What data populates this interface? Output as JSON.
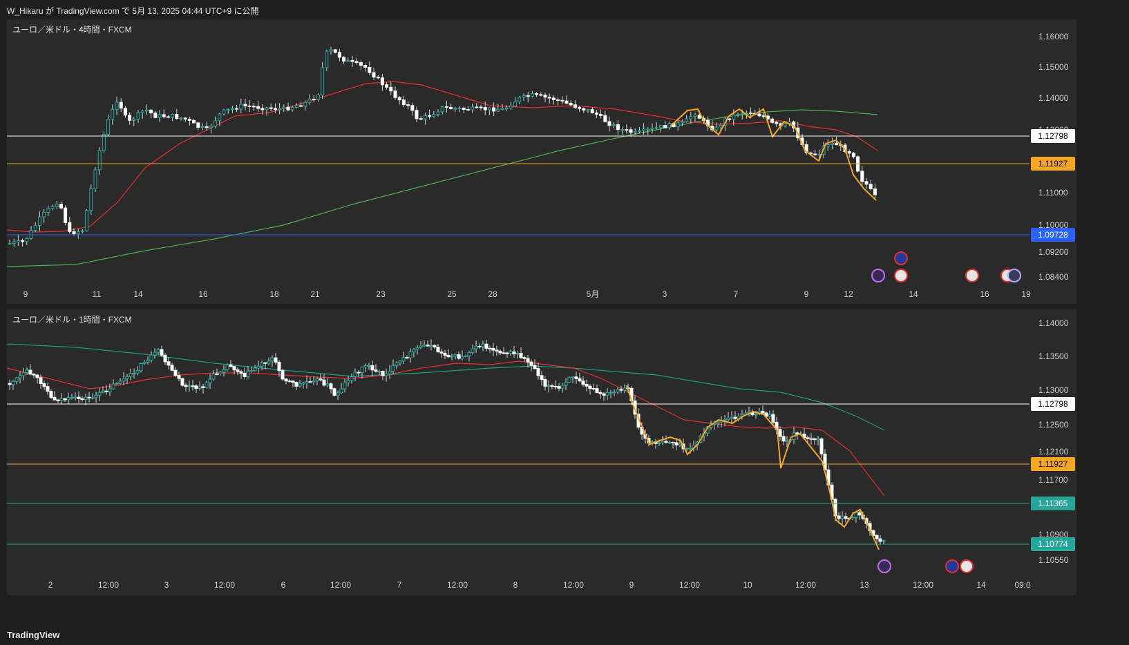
{
  "header": {
    "publish_text": "W_Hikaru が TradingView.com で 5月 13, 2025 04:44 UTC+9 に公開"
  },
  "footer": {
    "brand": "TradingView"
  },
  "colors": {
    "bg": "#2a2a2a",
    "up": "#ffffff",
    "down": "#ffffff",
    "ma_red": "#e5302f",
    "ma_green": "#4caf50",
    "ma_teal": "#1c9c86",
    "zigzag": "#f5a623",
    "white_line": "#ffffff",
    "orange_line": "#f5a623",
    "blue_line": "#2962ff",
    "teal_line": "#26a69a"
  },
  "panes": [
    {
      "title": "ユーロ／米ドル・4時間・FXCM",
      "y_ticks": [
        "1.16000",
        "1.15000",
        "1.14000",
        "1.13000",
        "1.12000",
        "1.11000",
        "1.10000",
        "1.09200",
        "1.08400"
      ],
      "y_tick_values": [
        1.16,
        1.15,
        1.14,
        1.13,
        1.12,
        1.11,
        1.1,
        1.092,
        1.084
      ],
      "x_labels": [
        "9",
        "11",
        "14",
        "16",
        "18",
        "21",
        "23",
        "25",
        "28",
        "5月",
        "3",
        "7",
        "9",
        "12",
        "14",
        "16",
        "19"
      ],
      "hlines": [
        {
          "label": "1.12798",
          "value": 1.12798,
          "color": "#ffffff",
          "text_color": "#000000"
        },
        {
          "label": "1.11927",
          "value": 1.11927,
          "color": "#f5a623",
          "text_color": "#000000"
        },
        {
          "label": "1.09728",
          "value": 1.09728,
          "color": "#2962ff",
          "text_color": "#ffffff"
        }
      ],
      "event_icons": [
        "lightning-icon",
        "eu-flag-icon",
        "us-flag-icon",
        "us-flag-icon",
        "us-flag-icon"
      ]
    },
    {
      "title": "ユーロ／米ドル・1時間・FXCM",
      "y_ticks": [
        "1.14000",
        "1.13500",
        "1.13000",
        "1.12500",
        "1.12100",
        "1.11700",
        "1.11300",
        "1.10900",
        "1.10550"
      ],
      "y_tick_values": [
        1.14,
        1.135,
        1.13,
        1.125,
        1.121,
        1.117,
        1.113,
        1.109,
        1.1055
      ],
      "x_labels": [
        "2",
        "12:00",
        "3",
        "12:00",
        "6",
        "12:00",
        "7",
        "12:00",
        "8",
        "12:00",
        "9",
        "12:00",
        "10",
        "12:00",
        "13",
        "12:00",
        "14",
        "09:0"
      ],
      "hlines": [
        {
          "label": "1.12798",
          "value": 1.12798,
          "color": "#ffffff",
          "text_color": "#000000"
        },
        {
          "label": "1.11927",
          "value": 1.11927,
          "color": "#f5a623",
          "text_color": "#000000"
        },
        {
          "label": "1.11365",
          "value": 1.11365,
          "color": "#26a69a",
          "text_color": "#ffffff"
        },
        {
          "label": "1.10774",
          "value": 1.10774,
          "color": "#26a69a",
          "text_color": "#ffffff"
        }
      ],
      "event_icons": [
        "lightning-icon",
        "eu-flag-icon",
        "us-flag-icon"
      ]
    }
  ]
}
